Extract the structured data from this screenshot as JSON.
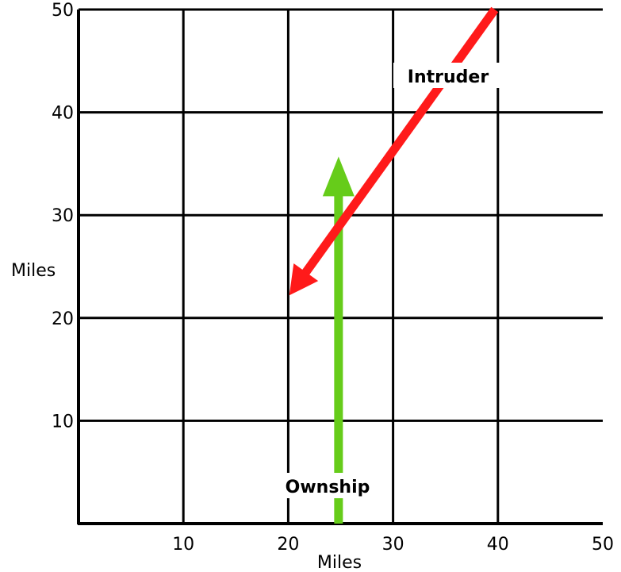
{
  "chart_data": {
    "type": "line",
    "xlabel": "Miles",
    "ylabel": "Miles",
    "xlim": [
      0,
      50
    ],
    "ylim": [
      0,
      50
    ],
    "x_ticks": [
      "10",
      "20",
      "30",
      "40",
      "50"
    ],
    "y_ticks": [
      "10",
      "20",
      "30",
      "40",
      "50"
    ],
    "grid": true,
    "series": [
      {
        "name": "Intruder",
        "color": "#ff1a1a",
        "start": [
          39.7,
          50
        ],
        "end": [
          20.1,
          22.2
        ]
      },
      {
        "name": "Ownship",
        "color": "#66cc1a",
        "start": [
          24.8,
          0
        ],
        "end": [
          24.8,
          35.7
        ]
      }
    ]
  }
}
